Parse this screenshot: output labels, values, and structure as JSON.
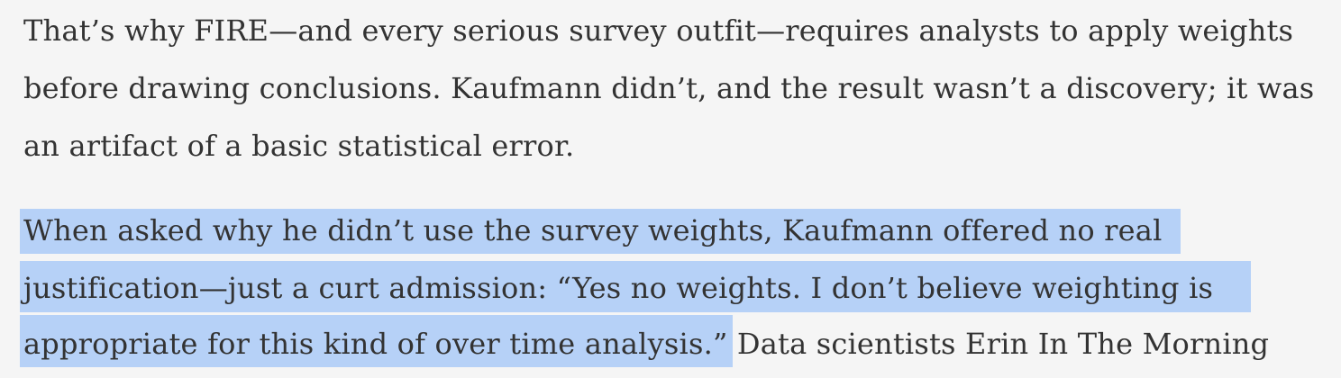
{
  "paragraph1": {
    "line1": "That’s why FIRE—and every serious survey outfit—requires analysts to apply weights",
    "line2": "before drawing conclusions. Kaufmann didn’t, and the result wasn’t a discovery; it was",
    "line3": "an artifact of a basic statistical error."
  },
  "paragraph2": {
    "line1": "When asked why he didn’t use the survey weights, Kaufmann offered no real",
    "line2": "justification—just a curt admission: “Yes no weights. I don’t believe weighting is",
    "line3_selected": "appropriate for this kind of over time analysis.”",
    "line3_rest": " Data scientists Erin In The Morning"
  },
  "selection_color": "#b6d1f7",
  "background_color": "#f5f5f5",
  "text_color": "#333333"
}
